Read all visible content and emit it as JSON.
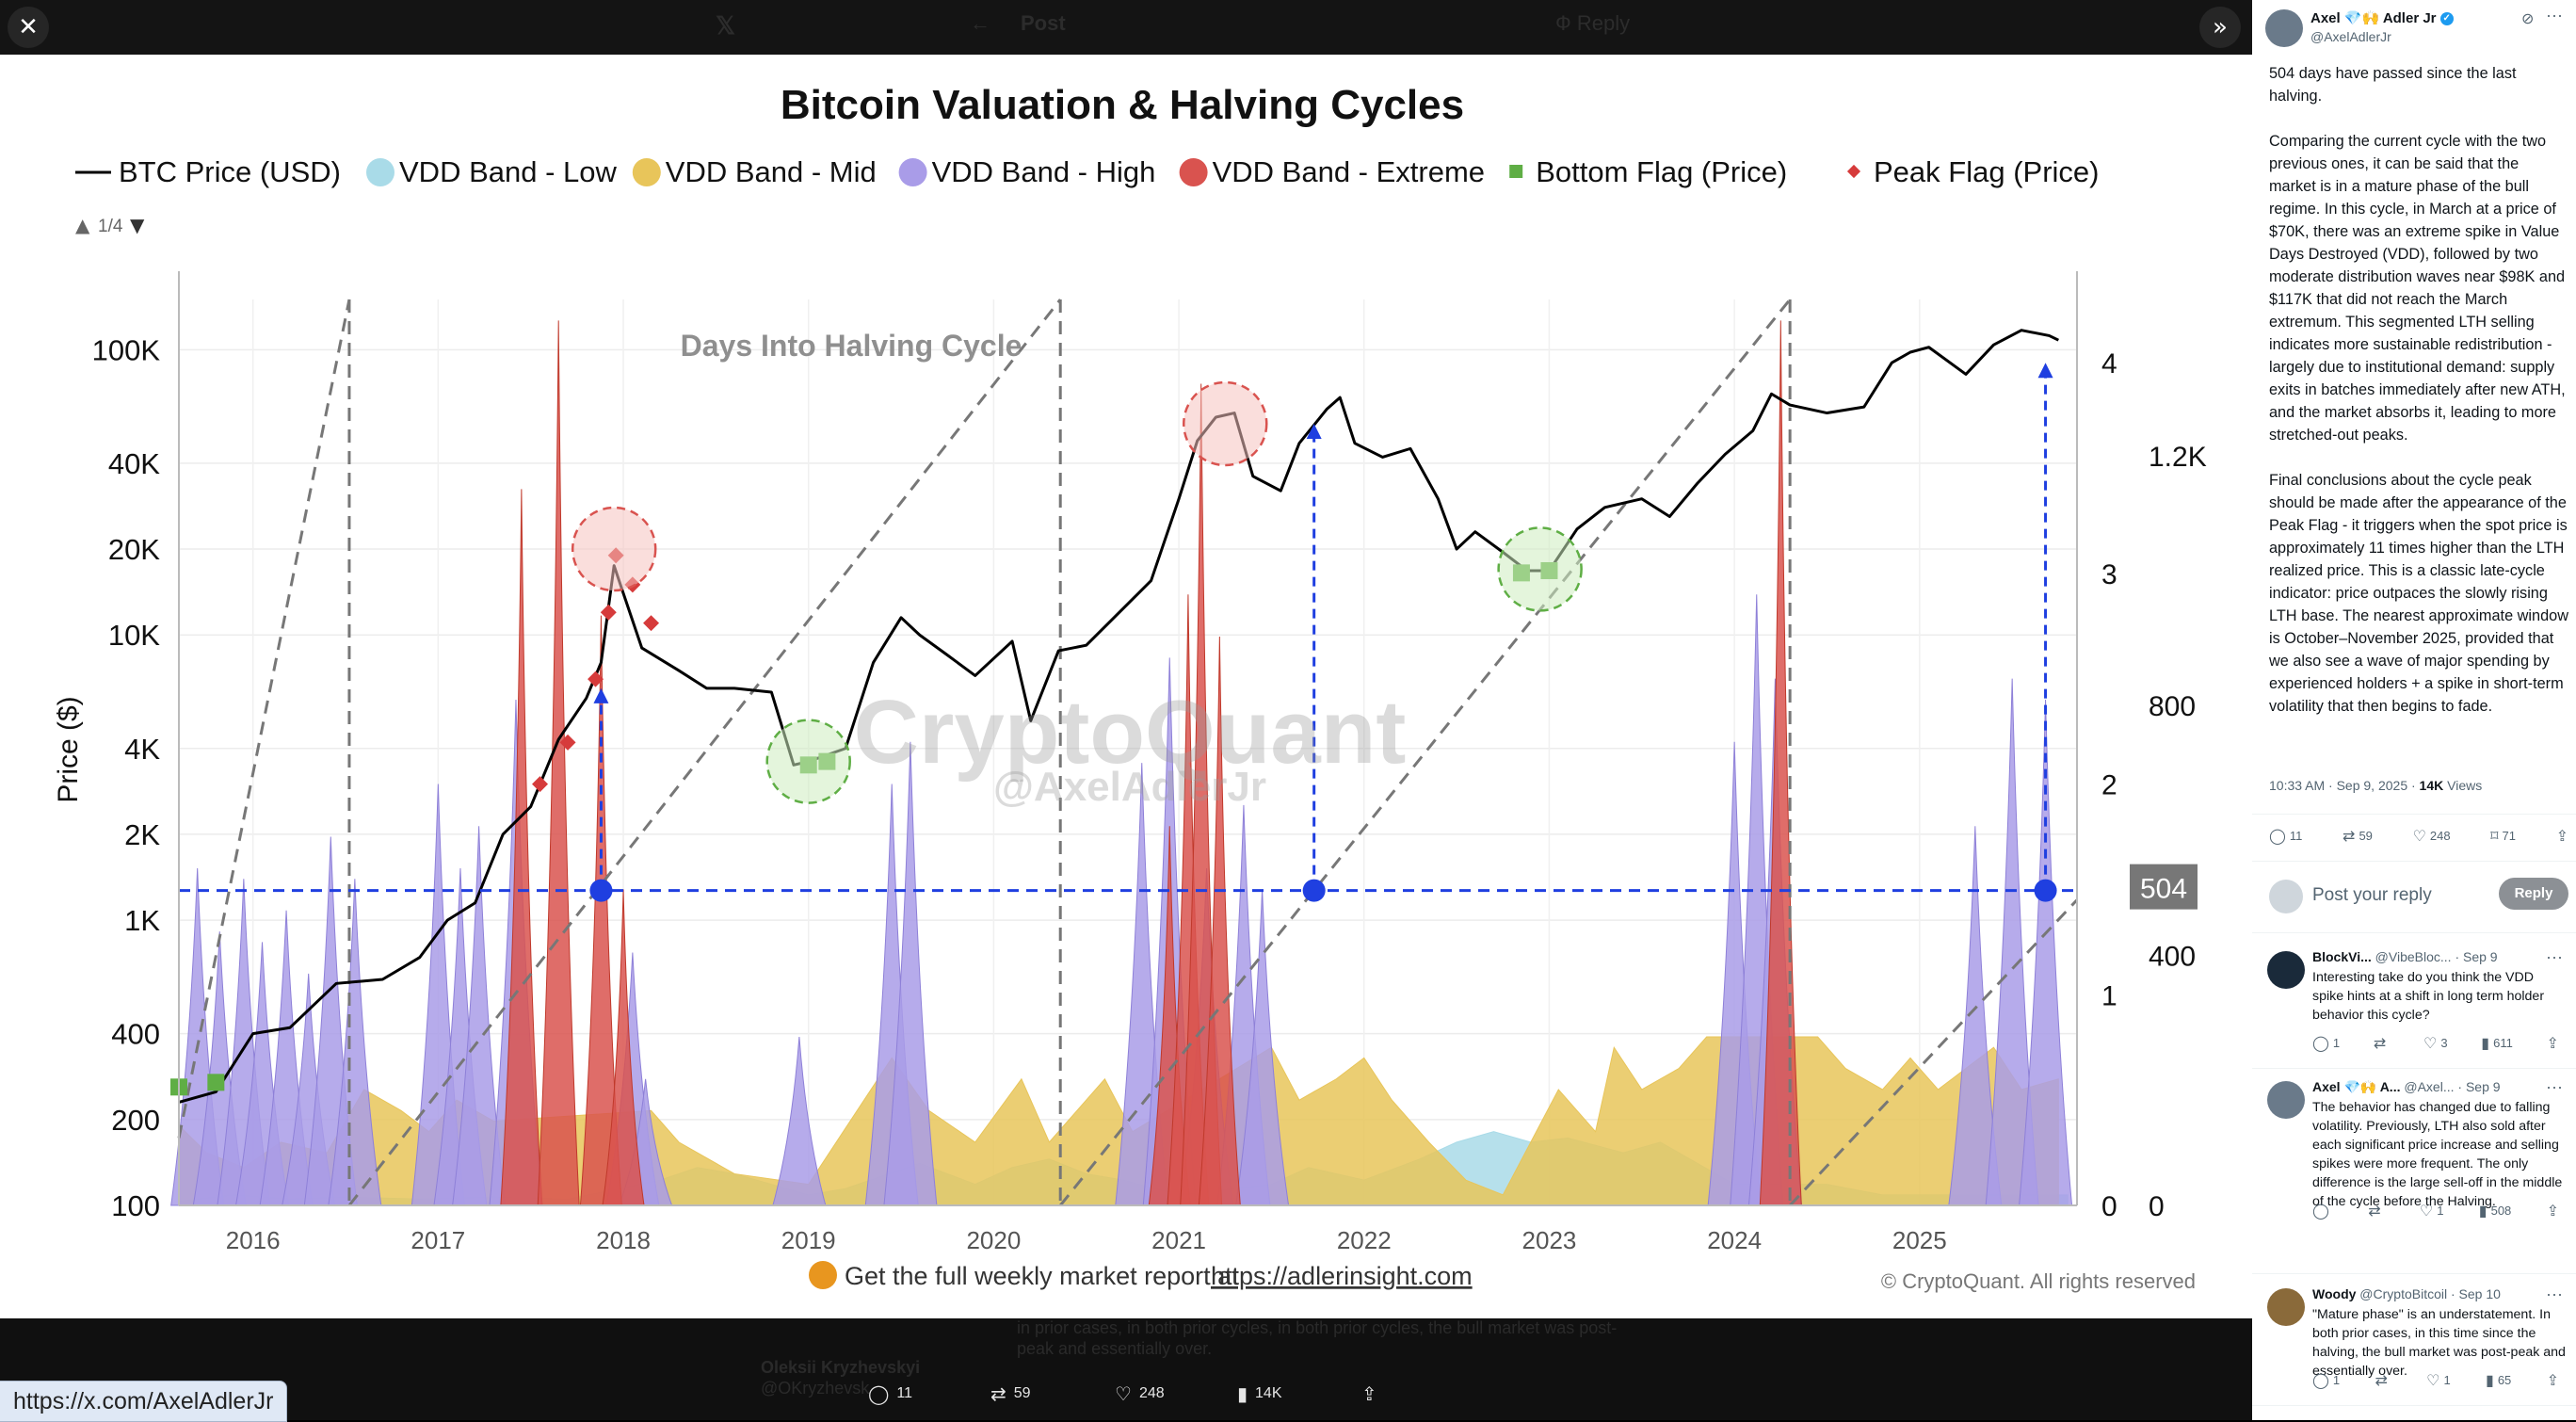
{
  "viewer": {
    "close_icon": "close-icon",
    "expand_icon": "chevrons-right-icon",
    "header_faded": {
      "back": "←",
      "title": "Post",
      "right": "Ф Reply"
    },
    "url_hover": "https://x.com/AxelAdlerJr",
    "dock": {
      "replies": "11",
      "reposts": "59",
      "likes": "248",
      "views": "14K"
    },
    "ghost_reply": {
      "name": "Oleksii Kryzhevskyi",
      "handle": "@OKryzhevsk",
      "text_line1": "in prior cases, in both prior cycles, in both prior cycles, the bull market was post-",
      "text_line2": "peak and essentially over."
    }
  },
  "chart_data": {
    "type": "area",
    "title": "Bitcoin Valuation & Halving Cycles",
    "legend": [
      {
        "label": "BTC Price (USD)",
        "color": "#000000",
        "shape": "line"
      },
      {
        "label": "VDD Band - Low",
        "color": "#a9dbe8",
        "shape": "circle"
      },
      {
        "label": "VDD Band - Mid",
        "color": "#e8c55a",
        "shape": "circle"
      },
      {
        "label": "VDD Band - High",
        "color": "#a99ce8",
        "shape": "circle"
      },
      {
        "label": "VDD Band - Extreme",
        "color": "#d9534f",
        "shape": "circle"
      },
      {
        "label": "Bottom Flag (Price)",
        "color": "#5fae45",
        "shape": "square"
      },
      {
        "label": "Peak Flag (Price)",
        "color": "#d63b3b",
        "shape": "diamond"
      }
    ],
    "legend_pager": "1/4",
    "ylabel": "Price ($)",
    "y_scale": "log",
    "ylim": [
      100,
      150000
    ],
    "y_ticks": [
      "100",
      "200",
      "400",
      "1K",
      "2K",
      "4K",
      "10K",
      "20K",
      "40K",
      "100K"
    ],
    "y_tick_values": [
      100,
      200,
      400,
      1000,
      2000,
      4000,
      10000,
      20000,
      40000,
      100000
    ],
    "xlim": [
      2015.6,
      2025.85
    ],
    "x_ticks": [
      "2016",
      "2017",
      "2018",
      "2019",
      "2020",
      "2021",
      "2022",
      "2023",
      "2024",
      "2025"
    ],
    "right_axis_inner_ticks": [
      "0",
      "1",
      "2",
      "3",
      "4"
    ],
    "right_axis_inner_range": [
      0,
      4.3
    ],
    "right_axis_outer_ticks": [
      "0",
      "400",
      "800",
      "1.2K"
    ],
    "right_axis_outer_range": [
      0,
      1450
    ],
    "highlight_label": "504",
    "reference_value_days": 504,
    "annotation_text": "Days Into Halving Cycle",
    "watermark": [
      "CryptoQuant",
      "@AxelAdlerJr"
    ],
    "footer_link_prefix": "Get the full weekly market report at",
    "footer_link": "https://adlerinsight.com",
    "copyright": "© CryptoQuant. All rights reserved",
    "halvings": [
      2016.52,
      2020.36,
      2024.3
    ],
    "cycle_ramps": [
      [
        2015.6,
        2016.52,
        0.32,
        4.3
      ],
      [
        2016.52,
        2020.36,
        0,
        4.3
      ],
      [
        2020.36,
        2024.3,
        0,
        4.3
      ],
      [
        2024.3,
        2025.85,
        0,
        1.45
      ]
    ],
    "price": [
      [
        2015.6,
        230
      ],
      [
        2015.8,
        250
      ],
      [
        2016.0,
        400
      ],
      [
        2016.2,
        420
      ],
      [
        2016.45,
        600
      ],
      [
        2016.7,
        620
      ],
      [
        2016.9,
        740
      ],
      [
        2017.05,
        1000
      ],
      [
        2017.2,
        1150
      ],
      [
        2017.35,
        2000
      ],
      [
        2017.5,
        2500
      ],
      [
        2017.65,
        4300
      ],
      [
        2017.8,
        6000
      ],
      [
        2017.88,
        8000
      ],
      [
        2017.95,
        17500
      ],
      [
        2018.0,
        14000
      ],
      [
        2018.1,
        9000
      ],
      [
        2018.3,
        7500
      ],
      [
        2018.45,
        6500
      ],
      [
        2018.6,
        6500
      ],
      [
        2018.8,
        6300
      ],
      [
        2018.92,
        3500
      ],
      [
        2019.0,
        3600
      ],
      [
        2019.2,
        4000
      ],
      [
        2019.35,
        8000
      ],
      [
        2019.5,
        11500
      ],
      [
        2019.6,
        10000
      ],
      [
        2019.75,
        8500
      ],
      [
        2019.9,
        7200
      ],
      [
        2020.1,
        9500
      ],
      [
        2020.2,
        5000
      ],
      [
        2020.35,
        8800
      ],
      [
        2020.5,
        9200
      ],
      [
        2020.65,
        11500
      ],
      [
        2020.85,
        15500
      ],
      [
        2021.0,
        30000
      ],
      [
        2021.1,
        48000
      ],
      [
        2021.2,
        58000
      ],
      [
        2021.3,
        60000
      ],
      [
        2021.4,
        36000
      ],
      [
        2021.55,
        32000
      ],
      [
        2021.65,
        47000
      ],
      [
        2021.8,
        62000
      ],
      [
        2021.87,
        68000
      ],
      [
        2021.95,
        47000
      ],
      [
        2022.1,
        42000
      ],
      [
        2022.25,
        45000
      ],
      [
        2022.4,
        30000
      ],
      [
        2022.5,
        20000
      ],
      [
        2022.6,
        23000
      ],
      [
        2022.75,
        19500
      ],
      [
        2022.88,
        16800
      ],
      [
        2023.0,
        16800
      ],
      [
        2023.15,
        23500
      ],
      [
        2023.3,
        28000
      ],
      [
        2023.5,
        30000
      ],
      [
        2023.65,
        26000
      ],
      [
        2023.8,
        34000
      ],
      [
        2023.95,
        43000
      ],
      [
        2024.1,
        52000
      ],
      [
        2024.2,
        70000
      ],
      [
        2024.3,
        64000
      ],
      [
        2024.5,
        60000
      ],
      [
        2024.7,
        63000
      ],
      [
        2024.85,
        90000
      ],
      [
        2024.95,
        98000
      ],
      [
        2025.05,
        102000
      ],
      [
        2025.25,
        82000
      ],
      [
        2025.4,
        104000
      ],
      [
        2025.55,
        117000
      ],
      [
        2025.7,
        112000
      ],
      [
        2025.75,
        108000
      ]
    ],
    "vdd_low": [
      [
        2015.6,
        0.02
      ],
      [
        2015.9,
        0.05
      ],
      [
        2016.2,
        0.03
      ],
      [
        2016.5,
        0.04
      ],
      [
        2016.9,
        0.03
      ],
      [
        2017.3,
        0.04
      ],
      [
        2017.7,
        0.03
      ],
      [
        2018.2,
        0.12
      ],
      [
        2018.4,
        0.18
      ],
      [
        2018.6,
        0.15
      ],
      [
        2018.8,
        0.1
      ],
      [
        2019.0,
        0.05
      ],
      [
        2019.2,
        0.08
      ],
      [
        2019.6,
        0.2
      ],
      [
        2019.9,
        0.1
      ],
      [
        2020.1,
        0.18
      ],
      [
        2020.3,
        0.22
      ],
      [
        2020.5,
        0.15
      ],
      [
        2020.7,
        0.12
      ],
      [
        2021.0,
        0.05
      ],
      [
        2021.5,
        0.1
      ],
      [
        2021.7,
        0.18
      ],
      [
        2022.0,
        0.12
      ],
      [
        2022.3,
        0.22
      ],
      [
        2022.5,
        0.3
      ],
      [
        2022.7,
        0.35
      ],
      [
        2022.9,
        0.3
      ],
      [
        2023.1,
        0.32
      ],
      [
        2023.4,
        0.25
      ],
      [
        2023.6,
        0.3
      ],
      [
        2023.8,
        0.2
      ],
      [
        2024.0,
        0.1
      ],
      [
        2024.5,
        0.1
      ],
      [
        2024.8,
        0.05
      ],
      [
        2025.2,
        0.05
      ],
      [
        2025.6,
        0.05
      ],
      [
        2025.8,
        0.05
      ]
    ],
    "vdd_mid": [
      [
        2015.6,
        0.38
      ],
      [
        2015.75,
        0.25
      ],
      [
        2015.95,
        0.18
      ],
      [
        2016.15,
        0.3
      ],
      [
        2016.4,
        0.25
      ],
      [
        2016.6,
        0.55
      ],
      [
        2016.8,
        0.45
      ],
      [
        2016.95,
        0.35
      ],
      [
        2017.1,
        0.5
      ],
      [
        2017.3,
        0.4
      ],
      [
        2018.15,
        0.45
      ],
      [
        2018.3,
        0.3
      ],
      [
        2018.6,
        0.15
      ],
      [
        2019.0,
        0.1
      ],
      [
        2019.45,
        0.7
      ],
      [
        2019.65,
        0.45
      ],
      [
        2019.9,
        0.3
      ],
      [
        2020.15,
        0.6
      ],
      [
        2020.3,
        0.3
      ],
      [
        2020.45,
        0.45
      ],
      [
        2020.6,
        0.6
      ],
      [
        2020.75,
        0.35
      ],
      [
        2021.5,
        0.75
      ],
      [
        2021.65,
        0.5
      ],
      [
        2021.85,
        0.6
      ],
      [
        2022.0,
        0.7
      ],
      [
        2022.15,
        0.5
      ],
      [
        2022.35,
        0.3
      ],
      [
        2022.55,
        0.12
      ],
      [
        2022.75,
        0.05
      ],
      [
        2023.05,
        0.55
      ],
      [
        2023.25,
        0.35
      ],
      [
        2023.35,
        0.75
      ],
      [
        2023.5,
        0.55
      ],
      [
        2023.7,
        0.65
      ],
      [
        2023.85,
        0.8
      ],
      [
        2024.45,
        0.8
      ],
      [
        2024.6,
        0.65
      ],
      [
        2024.8,
        0.55
      ],
      [
        2024.95,
        0.7
      ],
      [
        2025.1,
        0.55
      ],
      [
        2025.25,
        0.65
      ],
      [
        2025.4,
        0.75
      ],
      [
        2025.55,
        0.55
      ],
      [
        2025.75,
        0.6
      ]
    ],
    "vdd_high": [
      [
        2015.7,
        1.6
      ],
      [
        2015.82,
        1.3
      ],
      [
        2015.95,
        1.55
      ],
      [
        2016.05,
        1.25
      ],
      [
        2016.18,
        1.4
      ],
      [
        2016.3,
        1.1
      ],
      [
        2016.42,
        1.75
      ],
      [
        2016.55,
        1.55
      ],
      [
        2017.0,
        2.0
      ],
      [
        2017.12,
        1.6
      ],
      [
        2017.22,
        1.8
      ],
      [
        2017.42,
        2.4
      ],
      [
        2018.05,
        1.2
      ],
      [
        2018.12,
        0.6
      ],
      [
        2018.95,
        0.8
      ],
      [
        2019.45,
        2.0
      ],
      [
        2019.55,
        2.2
      ],
      [
        2020.8,
        2.1
      ],
      [
        2020.95,
        2.6
      ],
      [
        2021.15,
        1.6
      ],
      [
        2021.35,
        1.9
      ],
      [
        2021.45,
        1.5
      ],
      [
        2024.0,
        2.2
      ],
      [
        2024.12,
        2.9
      ],
      [
        2024.22,
        2.5
      ],
      [
        2025.3,
        1.8
      ],
      [
        2025.5,
        2.5
      ],
      [
        2025.68,
        2.4
      ]
    ],
    "vdd_extreme": [
      [
        2017.45,
        3.4
      ],
      [
        2017.65,
        4.2
      ],
      [
        2017.88,
        2.8
      ],
      [
        2018.0,
        1.5
      ],
      [
        2020.95,
        1.8
      ],
      [
        2021.05,
        2.9
      ],
      [
        2021.12,
        3.9
      ],
      [
        2021.22,
        2.7
      ],
      [
        2024.25,
        4.2
      ]
    ],
    "bottom_flags": [
      [
        2015.6,
        260
      ],
      [
        2015.8,
        270
      ],
      [
        2019.0,
        3500
      ],
      [
        2019.1,
        3600
      ],
      [
        2022.85,
        16500
      ],
      [
        2023.0,
        16800
      ]
    ],
    "peak_flags": [
      [
        2017.55,
        3000
      ],
      [
        2017.7,
        4200
      ],
      [
        2017.85,
        7000
      ],
      [
        2017.92,
        12000
      ],
      [
        2017.96,
        19000
      ],
      [
        2018.05,
        15000
      ],
      [
        2018.15,
        11000
      ]
    ],
    "highlight_circles": [
      {
        "x": 2017.95,
        "y": 20000,
        "color": "red"
      },
      {
        "x": 2019.0,
        "y": 3600,
        "color": "green"
      },
      {
        "x": 2021.25,
        "y": 55000,
        "color": "red"
      },
      {
        "x": 2022.95,
        "y": 17000,
        "color": "green"
      }
    ],
    "markers": [
      {
        "x": 2017.88,
        "to_y": 6500
      },
      {
        "x": 2021.73,
        "to_y": 55000
      },
      {
        "x": 2025.68,
        "to_y": 90000
      }
    ],
    "grid": true
  },
  "sidebar": {
    "author": {
      "name": "Axel 💎🙌 Adler Jr",
      "handle": "@AxelAdlerJr"
    },
    "grok_icon": "grok-icon",
    "post_text": "504 days have passed since the last halving.\n\nComparing the current cycle with the two previous ones, it can be said that the market is in a mature phase of the bull regime. In this cycle, in March at a price of $70K, there was an extreme spike in Value Days Destroyed (VDD), followed by two moderate distribution waves near $98K and $117K that did not reach the March extremum. This segmented LTH selling indicates more sustainable redistribution - largely due to institutional demand: supply exits in batches immediately after new ATH, and the market absorbs it, leading to more stretched-out peaks.\n\nFinal conclusions about the cycle peak should be made after the appearance of the Peak Flag - it triggers when the spot price is approximately 11 times higher than the LTH realized price. This is a classic late-cycle indicator: price outpaces the slowly rising LTH base. The nearest approximate window is October–November 2025, provided that we also see a wave of major spending by experienced holders + a spike in short-term volatility that then begins to fade.",
    "timestamp": "10:33 AM · Sep 9, 2025 · ",
    "views": "14K",
    "views_label": " Views",
    "actions": {
      "replies": "11",
      "reposts": "59",
      "likes": "248",
      "bookmarks": "71"
    },
    "reply_placeholder": "Post your reply",
    "reply_button": "Reply",
    "replies": [
      {
        "name": "BlockVi...",
        "handle": "@VibeBloc...",
        "date": "· Sep 9",
        "text": "Interesting take do you think the VDD spike hints at a shift in long term holder behavior this cycle?",
        "replies": "1",
        "reposts": "",
        "likes": "3",
        "views": "611"
      },
      {
        "name": "Axel 💎🙌 A...",
        "handle": "@Axel...",
        "date": "· Sep 9",
        "text": "The behavior has changed due to falling volatility. Previously, LTH also sold after each significant price increase and selling spikes were more frequent. The only difference is the large sell-off in the middle of the cycle before the Halving.",
        "replies": "",
        "reposts": "",
        "likes": "1",
        "views": "508"
      },
      {
        "name": "Woody",
        "handle": "@CryptoBitcoil",
        "date": "· Sep 10",
        "text": "\"Mature phase\" is an understatement. In both prior cases, in this time since the halving, the bull market was post-peak and essentially over.",
        "replies": "1",
        "reposts": "",
        "likes": "1",
        "views": "65"
      }
    ]
  }
}
